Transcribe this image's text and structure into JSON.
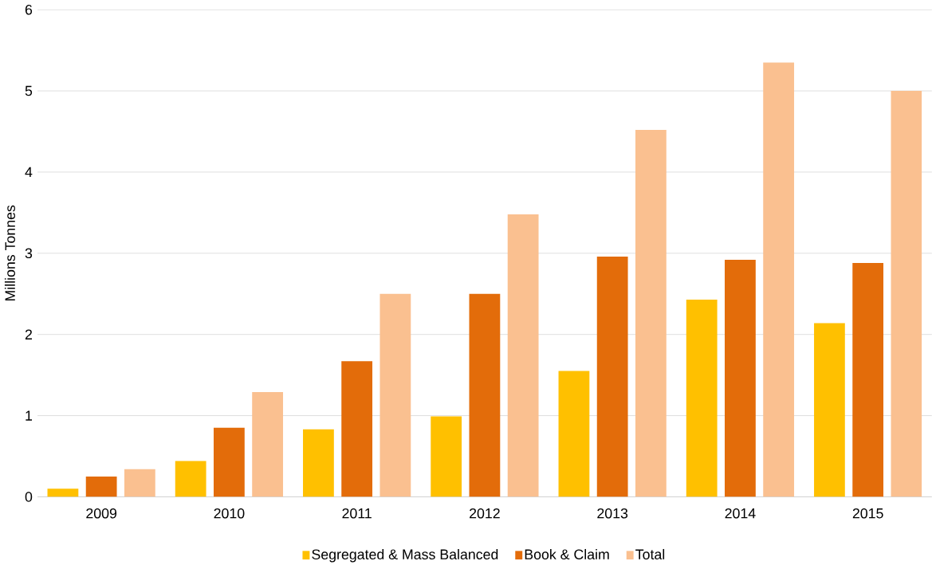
{
  "chart_data": {
    "type": "bar",
    "ylabel": "Millions Tonnes",
    "categories": [
      "2009",
      "2010",
      "2011",
      "2012",
      "2013",
      "2014",
      "2015"
    ],
    "series": [
      {
        "name": "Segregated & Mass Balanced",
        "color": "#ffc000",
        "values": [
          0.1,
          0.44,
          0.83,
          0.99,
          1.55,
          2.43,
          2.14
        ]
      },
      {
        "name": "Book & Claim",
        "color": "#e36c0a",
        "values": [
          0.25,
          0.85,
          1.67,
          2.5,
          2.96,
          2.92,
          2.88
        ]
      },
      {
        "name": "Total",
        "color": "#fac090",
        "values": [
          0.34,
          1.29,
          2.5,
          3.48,
          4.52,
          5.35,
          5.0
        ]
      }
    ],
    "ylim": [
      0,
      6
    ],
    "yticks": [
      0,
      1,
      2,
      3,
      4,
      5,
      6
    ],
    "grid": "y",
    "legend": "bottom"
  }
}
